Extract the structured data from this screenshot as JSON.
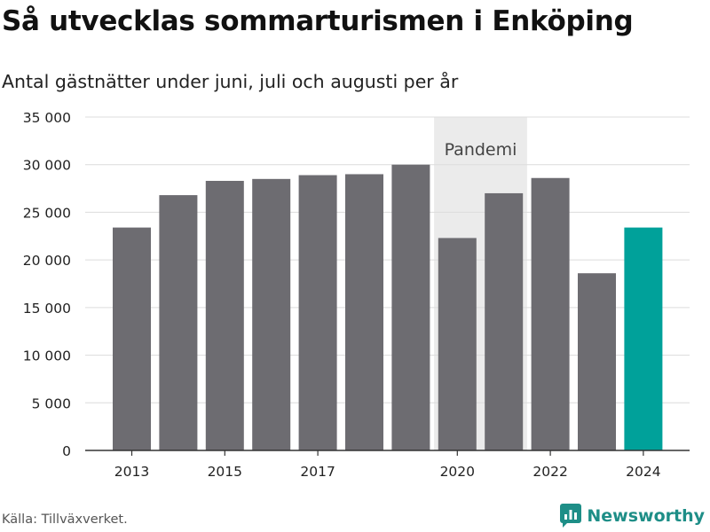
{
  "header": {
    "title": "Så utvecklas sommarturismen i Enköping",
    "subtitle": "Antal gästnätter under juni, juli och augusti per år"
  },
  "footer": {
    "source": "Källa: Tillväxverket.",
    "brand": "Newsworthy"
  },
  "colors": {
    "bar": "#6d6c71",
    "highlight": "#00a19a",
    "shade": "#ebebeb",
    "grid": "#dcdcdc",
    "brand": "#1e8e87"
  },
  "chart_data": {
    "type": "bar",
    "categories": [
      2013,
      2014,
      2015,
      2016,
      2017,
      2018,
      2019,
      2020,
      2021,
      2022,
      2023,
      2024
    ],
    "values": [
      23400,
      26800,
      28300,
      28500,
      28900,
      29000,
      30000,
      22300,
      27000,
      28600,
      18600,
      23400
    ],
    "highlight_category": 2024,
    "ylim": [
      0,
      35000
    ],
    "yticks": [
      0,
      5000,
      10000,
      15000,
      20000,
      25000,
      30000,
      35000
    ],
    "ytick_labels": [
      "0",
      "5 000",
      "10 000",
      "15 000",
      "20 000",
      "25 000",
      "30 000",
      "35 000"
    ],
    "xticks": [
      2013,
      2015,
      2017,
      2020,
      2022,
      2024
    ],
    "annotation": {
      "label": "Pandemi",
      "from": 2020,
      "to": 2021
    },
    "grid": true,
    "xlabel": "",
    "ylabel": ""
  }
}
